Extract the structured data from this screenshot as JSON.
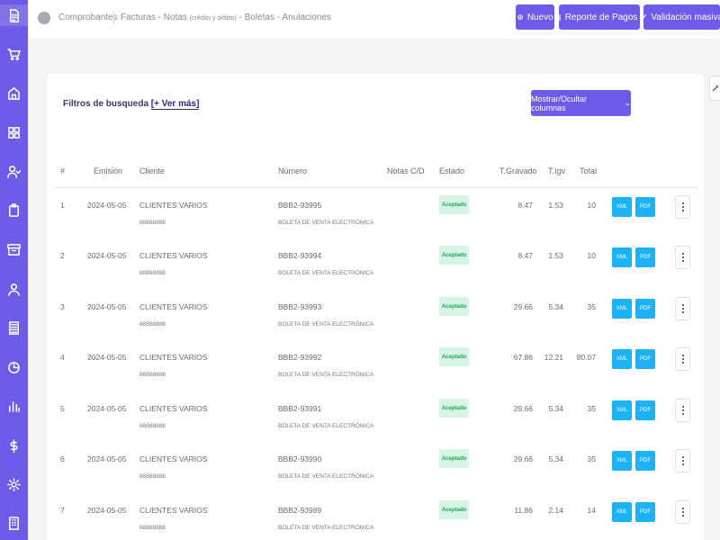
{
  "breadcrumb": {
    "root": "Comprobantes",
    "facturas": "Facturas - Notas",
    "notas_sub": "(crédito y débito)",
    "rest": "- Boletas - Anulaciones"
  },
  "toolbar": {
    "nuevo": "Nuevo",
    "reporte": "Reporte de Pagos",
    "validacion": "Validación masiva"
  },
  "filters": {
    "label": "Filtros de busqueda",
    "more": "[+ Ver más]"
  },
  "columns_button": "Mostrar/Ocultar columnas",
  "table": {
    "headers": [
      "#",
      "Emisión",
      "Cliente",
      "Número",
      "Notas C/D",
      "Estado",
      "T.Gravado",
      "T.Igv",
      "Total"
    ],
    "xml_label": "XML",
    "pdf_label": "PDF",
    "rows": [
      {
        "num": "1",
        "date": "2024-05-05",
        "client": "CLIENTES VARIOS",
        "doc": "88888888",
        "number": "BBB2-93995",
        "type": "BOLETA DE VENTA ELECTRÓNICA",
        "status": "Aceptado",
        "gravado": "8.47",
        "igv": "1.53",
        "total": "10"
      },
      {
        "num": "2",
        "date": "2024-05-05",
        "client": "CLIENTES VARIOS",
        "doc": "88888888",
        "number": "BBB2-93994",
        "type": "BOLETA DE VENTA ELECTRÓNICA",
        "status": "Aceptado",
        "gravado": "8.47",
        "igv": "1.53",
        "total": "10"
      },
      {
        "num": "3",
        "date": "2024-05-05",
        "client": "CLIENTES VARIOS",
        "doc": "88888888",
        "number": "BBB2-93993",
        "type": "BOLETA DE VENTA ELECTRÓNICA",
        "status": "Aceptado",
        "gravado": "29.66",
        "igv": "5.34",
        "total": "35"
      },
      {
        "num": "4",
        "date": "2024-05-05",
        "client": "CLIENTES VARIOS",
        "doc": "88888888",
        "number": "BBB2-93992",
        "type": "BOLETA DE VENTA ELECTRÓNICA",
        "status": "Aceptado",
        "gravado": "67.86",
        "igv": "12.21",
        "total": "80.07"
      },
      {
        "num": "5",
        "date": "2024-05-05",
        "client": "CLIENTES VARIOS",
        "doc": "88888888",
        "number": "BBB2-93991",
        "type": "BOLETA DE VENTA ELECTRÓNICA",
        "status": "Aceptado",
        "gravado": "29.66",
        "igv": "5.34",
        "total": "35"
      },
      {
        "num": "6",
        "date": "2024-05-05",
        "client": "CLIENTES VARIOS",
        "doc": "88888888",
        "number": "BBB2-93990",
        "type": "BOLETA DE VENTA ELECTRÓNICA",
        "status": "Aceptado",
        "gravado": "29.66",
        "igv": "5.34",
        "total": "35"
      },
      {
        "num": "7",
        "date": "2024-05-05",
        "client": "CLIENTES VARIOS",
        "doc": "88888888",
        "number": "BBB2-93989",
        "type": "BOLETA DE VENTA ELECTRÓNICA",
        "status": "Aceptado",
        "gravado": "11.86",
        "igv": "2.14",
        "total": "14"
      }
    ]
  },
  "sidebar_icons": [
    "document-icon",
    "cart-icon",
    "home-icon",
    "grid-icon",
    "user-check-icon",
    "clipboard-icon",
    "archive-icon",
    "users-icon",
    "receipt-icon",
    "pie-chart-icon",
    "bar-chart-icon",
    "dollar-icon",
    "gear-icon",
    "building-icon"
  ],
  "colors": {
    "accent": "#6c5ce7",
    "badge_bg": "#d7f5e4",
    "badge_text": "#22a35a",
    "file_button": "#1fb1f5"
  }
}
